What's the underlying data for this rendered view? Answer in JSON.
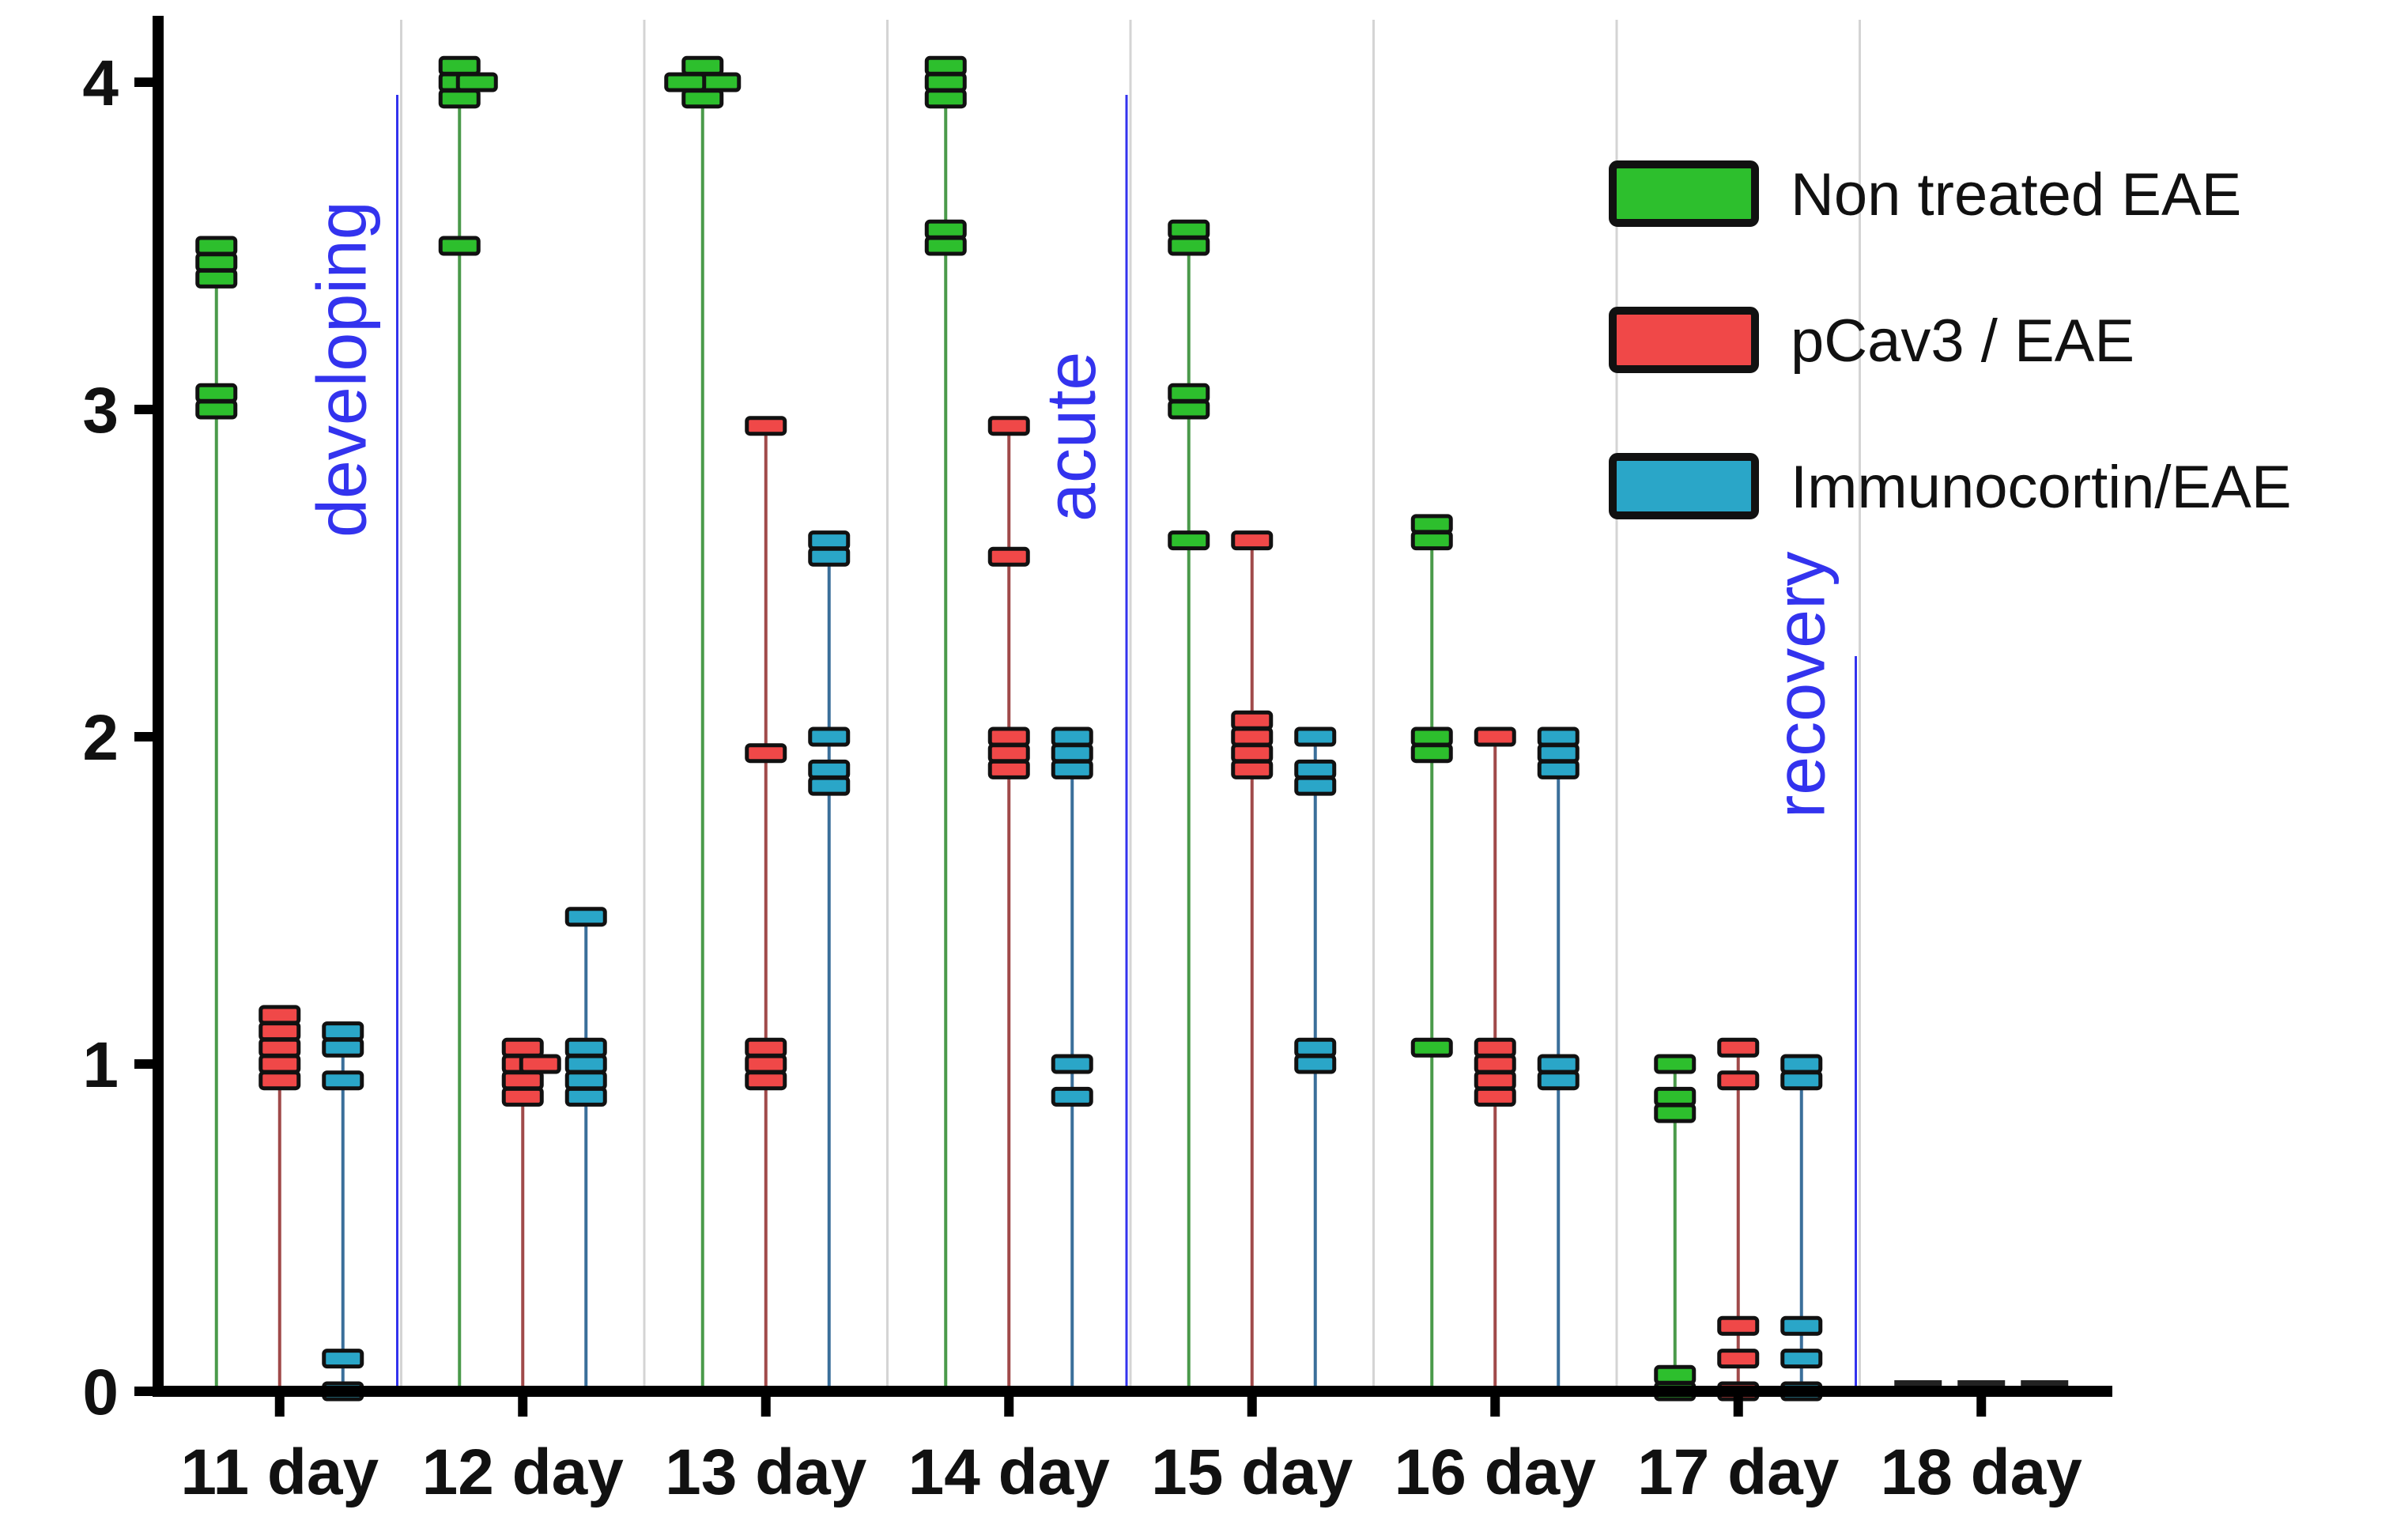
{
  "chart_data": {
    "type": "scatter",
    "title": "",
    "xlabel": "",
    "ylabel": "",
    "ylim": [
      0,
      4.2
    ],
    "yticks": [
      0,
      1,
      2,
      3,
      4
    ],
    "categories": [
      "11 day",
      "12 day",
      "13 day",
      "14 day",
      "15 day",
      "16 day",
      "17 day",
      "18 day"
    ],
    "series": [
      {
        "name": "Non treated EAE",
        "color": "#2dbf2d",
        "line_color": "#4a9a4a",
        "values": [
          [
            3,
            3.05,
            3.4,
            3.45,
            3.5
          ],
          [
            3.5,
            3.95,
            4,
            4,
            4.05
          ],
          [
            3.95,
            4,
            4,
            4,
            4.05
          ],
          [
            3.5,
            3.55,
            3.95,
            4,
            4.05
          ],
          [
            2.6,
            3,
            3.05,
            3.5,
            3.55
          ],
          [
            1.05,
            1.95,
            2,
            2.6,
            2.65
          ],
          [
            0,
            0.05,
            0.85,
            0.9,
            1
          ],
          [
            0,
            0,
            0,
            0,
            0
          ]
        ]
      },
      {
        "name": "pCav3 / EAE",
        "color": "#f04848",
        "line_color": "#a04a4a",
        "values": [
          [
            0.95,
            1,
            1.05,
            1.1,
            1.15
          ],
          [
            0.9,
            0.95,
            1,
            1,
            1.05
          ],
          [
            0.95,
            1,
            1.05,
            1.95,
            2.95
          ],
          [
            1.9,
            1.95,
            2,
            2.55,
            2.95
          ],
          [
            1.9,
            1.95,
            2,
            2.05,
            2.6
          ],
          [
            0.9,
            0.95,
            1,
            1.05,
            2
          ],
          [
            0,
            0.1,
            0.2,
            0.95,
            1.05
          ],
          [
            0,
            0,
            0,
            0,
            0
          ]
        ]
      },
      {
        "name": "Immunocortin/EAE",
        "color": "#2aa6c8",
        "line_color": "#3a6f9a",
        "values": [
          [
            0,
            0.1,
            0.95,
            1.05,
            1.1
          ],
          [
            0.9,
            0.95,
            1,
            1.05,
            1.45
          ],
          [
            1.85,
            1.9,
            2,
            2.55,
            2.6
          ],
          [
            0.9,
            1,
            1.9,
            1.95,
            2
          ],
          [
            1,
            1.05,
            1.85,
            1.9,
            2
          ],
          [
            0.95,
            1,
            1.9,
            1.95,
            2
          ],
          [
            0,
            0.1,
            0.2,
            0.95,
            1
          ],
          [
            0,
            0,
            0,
            0,
            0
          ]
        ]
      }
    ],
    "phases": [
      {
        "label": "developing",
        "after_category": 0,
        "color": "#3333ee"
      },
      {
        "label": "acute",
        "after_category": 3,
        "color": "#3333ee"
      },
      {
        "label": "recovery",
        "after_category": 6,
        "color": "#3333ee"
      }
    ],
    "legend_position": "top-right",
    "grid": "vertical separators between days"
  }
}
